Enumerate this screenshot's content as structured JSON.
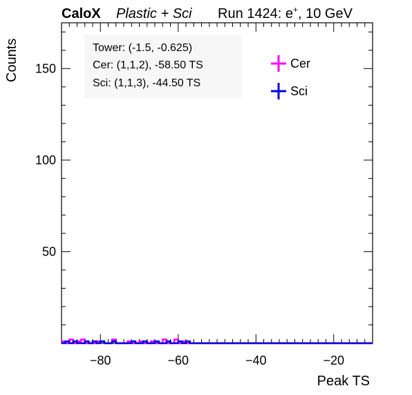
{
  "header": {
    "brand": "CaloX",
    "subtitle": "Plastic + Sci",
    "run_info": "Run 1424: e",
    "run_sup": "+",
    "run_energy": ", 10 GeV"
  },
  "info_box": {
    "line1": "Tower: (-1.5, -0.625)",
    "line2": "Cer: (1,1,2), -58.50 TS",
    "line3": "Sci: (1,1,3), -44.50 TS"
  },
  "colors": {
    "Cer": "#ff00ff",
    "Sci": "#0000dd",
    "frame": "#000000"
  },
  "chart_data": {
    "type": "line",
    "xlabel": "Peak TS",
    "ylabel": "Counts",
    "xlim": [
      -90,
      -10
    ],
    "ylim": [
      0,
      175
    ],
    "xticks": [
      -80,
      -60,
      -40,
      -20
    ],
    "yticks": [
      50,
      100,
      150
    ],
    "bin_width": 1,
    "x": [
      -90,
      -89,
      -88,
      -87,
      -86,
      -85,
      -84,
      -83,
      -82,
      -81,
      -80,
      -79,
      -78,
      -77,
      -76,
      -75,
      -74,
      -73,
      -72,
      -71,
      -70,
      -69,
      -68,
      -67,
      -66,
      -65,
      -64,
      -63,
      -62,
      -61,
      -60,
      -59,
      -58,
      -57,
      -56,
      -55,
      -54,
      -53,
      -52,
      -51,
      -50,
      -49,
      -48,
      -47,
      -46,
      -45,
      -44,
      -43,
      -42,
      -41,
      -40,
      -39,
      -38,
      -37,
      -36,
      -35,
      -34,
      -33,
      -32,
      -31,
      -30,
      -29,
      -28,
      -27,
      -26,
      -25,
      -24,
      -23,
      -22,
      -21,
      -20,
      -19,
      -18,
      -17,
      -16,
      -15,
      -14,
      -13,
      -12,
      -11
    ],
    "legend": {
      "entries": [
        "Cer",
        "Sci"
      ],
      "position": "top-right"
    },
    "series": [
      {
        "name": "Cer",
        "values": [
          1,
          0,
          2,
          0,
          1,
          2,
          0,
          0,
          0,
          1,
          1,
          0,
          0,
          2,
          0,
          0,
          0,
          1,
          0,
          0,
          1,
          0,
          0,
          1,
          0,
          0,
          2,
          0,
          0,
          2,
          0,
          1,
          0,
          0,
          0,
          0,
          0,
          0,
          0,
          0,
          0,
          0,
          0,
          0,
          0,
          0,
          0,
          0,
          0,
          0,
          0,
          0,
          0,
          0,
          0,
          0,
          0,
          0,
          0,
          0,
          0,
          0,
          0,
          0,
          0,
          0,
          0,
          0,
          0,
          0,
          0,
          0,
          0,
          0,
          0,
          0,
          0,
          0,
          0,
          0
        ]
      },
      {
        "name": "Sci",
        "values": [
          0,
          1,
          0,
          1,
          0,
          0,
          1,
          0,
          1,
          0,
          1,
          0,
          0,
          1,
          0,
          0,
          0,
          0,
          1,
          0,
          0,
          1,
          0,
          0,
          1,
          0,
          0,
          1,
          0,
          0,
          1,
          0,
          1,
          0,
          0,
          0,
          0,
          0,
          0,
          0,
          0,
          0,
          0,
          0,
          0,
          0,
          0,
          0,
          0,
          0,
          0,
          0,
          0,
          0,
          0,
          0,
          0,
          0,
          0,
          0,
          0,
          0,
          0,
          0,
          0,
          0,
          0,
          0,
          0,
          0,
          0,
          0,
          0,
          0,
          0,
          0,
          0,
          0,
          0,
          0
        ]
      }
    ]
  }
}
